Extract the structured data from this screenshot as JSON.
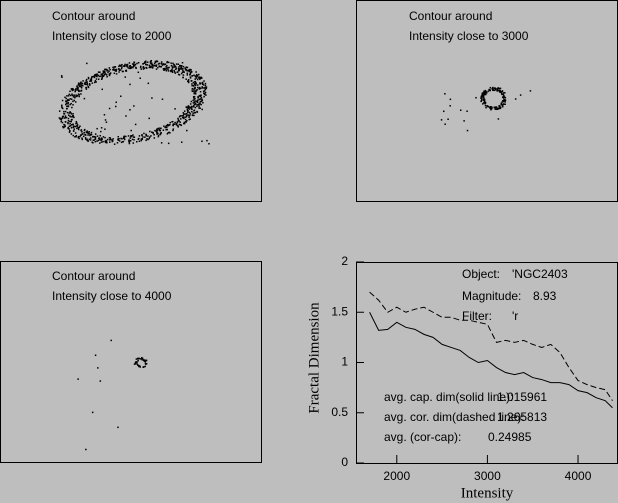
{
  "panels": [
    {
      "lines": [
        "Contour around",
        "Intensity close to 2000"
      ]
    },
    {
      "lines": [
        "Contour around",
        "Intensity close to 3000"
      ]
    },
    {
      "lines": [
        "Contour around",
        "Intensity close to 4000"
      ]
    }
  ],
  "chart_data": {
    "type": "line",
    "xlabel": "Intensity",
    "ylabel": "Fractal Dimension",
    "x": [
      1700,
      1800,
      1900,
      2000,
      2100,
      2200,
      2300,
      2400,
      2500,
      2600,
      2700,
      2800,
      2900,
      3000,
      3100,
      3200,
      3300,
      3400,
      3500,
      3600,
      3700,
      3800,
      3900,
      4000,
      4100,
      4200,
      4300,
      4380
    ],
    "series": [
      {
        "style": "solid",
        "color": "#000000",
        "values": [
          1.5,
          1.32,
          1.33,
          1.4,
          1.35,
          1.33,
          1.28,
          1.25,
          1.18,
          1.15,
          1.12,
          1.05,
          1.0,
          1.02,
          0.95,
          0.9,
          0.88,
          0.9,
          0.85,
          0.83,
          0.8,
          0.8,
          0.78,
          0.72,
          0.7,
          0.65,
          0.62,
          0.55
        ]
      },
      {
        "style": "dashed",
        "color": "#000000",
        "values": [
          1.7,
          1.62,
          1.5,
          1.55,
          1.5,
          1.53,
          1.55,
          1.5,
          1.45,
          1.45,
          1.42,
          1.42,
          1.4,
          1.38,
          1.2,
          1.22,
          1.2,
          1.22,
          1.18,
          1.15,
          1.18,
          1.1,
          0.95,
          0.82,
          0.78,
          0.75,
          0.73,
          0.62
        ]
      }
    ],
    "xlim": [
      1550,
      4430
    ],
    "ylim": [
      0,
      2
    ],
    "xticks": [
      2000,
      3000,
      4000
    ],
    "yticks": [
      0,
      0.5,
      1,
      1.5,
      2
    ],
    "annotations": [
      {
        "label": "Object:",
        "text": "'NGC2403"
      },
      {
        "label": "Magnitude:",
        "text": "8.93"
      },
      {
        "label": "Filter:",
        "text": "'r"
      },
      {
        "label": "avg. cap. dim(solid line):",
        "text": "1.015961"
      },
      {
        "label": "avg. cor. dim(dashed line):",
        "text": "1.265813"
      },
      {
        "label": "avg. (cor-cap):",
        "text": "0.24985"
      }
    ]
  }
}
